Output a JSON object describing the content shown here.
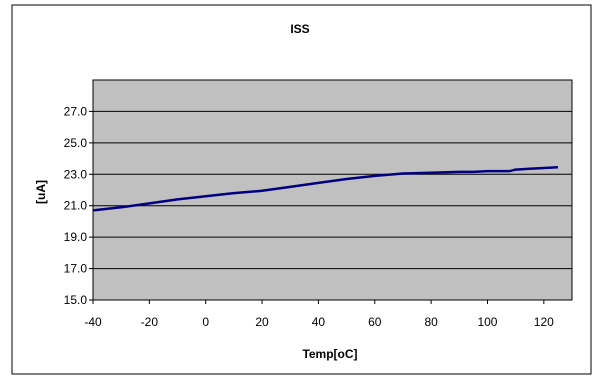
{
  "chart_data": {
    "type": "line",
    "title": "ISS",
    "xlabel": "Temp[oC]",
    "ylabel": "[uA]",
    "xlim": [
      -40,
      130
    ],
    "ylim": [
      15,
      29
    ],
    "x_ticks": [
      -40,
      -20,
      0,
      20,
      40,
      60,
      80,
      100,
      120
    ],
    "y_ticks": [
      15.0,
      17.0,
      19.0,
      21.0,
      23.0,
      25.0,
      27.0
    ],
    "x_tick_labels": [
      "-40",
      "-20",
      "0",
      "20",
      "40",
      "60",
      "80",
      "100",
      "120"
    ],
    "y_tick_labels": [
      "15.0",
      "17.0",
      "19.0",
      "21.0",
      "23.0",
      "25.0",
      "27.0"
    ],
    "grid": "horizontal",
    "legend": "none",
    "series": [
      {
        "color": "#000080",
        "x": [
          -40,
          -30,
          -20,
          -10,
          0,
          10,
          20,
          30,
          40,
          50,
          60,
          70,
          80,
          90,
          95,
          100,
          105,
          108,
          110,
          115,
          120,
          125
        ],
        "y": [
          20.7,
          20.9,
          21.15,
          21.4,
          21.6,
          21.8,
          21.95,
          22.2,
          22.45,
          22.7,
          22.9,
          23.05,
          23.1,
          23.15,
          23.15,
          23.2,
          23.2,
          23.2,
          23.3,
          23.35,
          23.4,
          23.45
        ]
      }
    ],
    "colors": {
      "plot_background": "#c0c0c0",
      "chart_background": "#ffffff",
      "gridline": "#000000",
      "frame": "#000000"
    }
  }
}
